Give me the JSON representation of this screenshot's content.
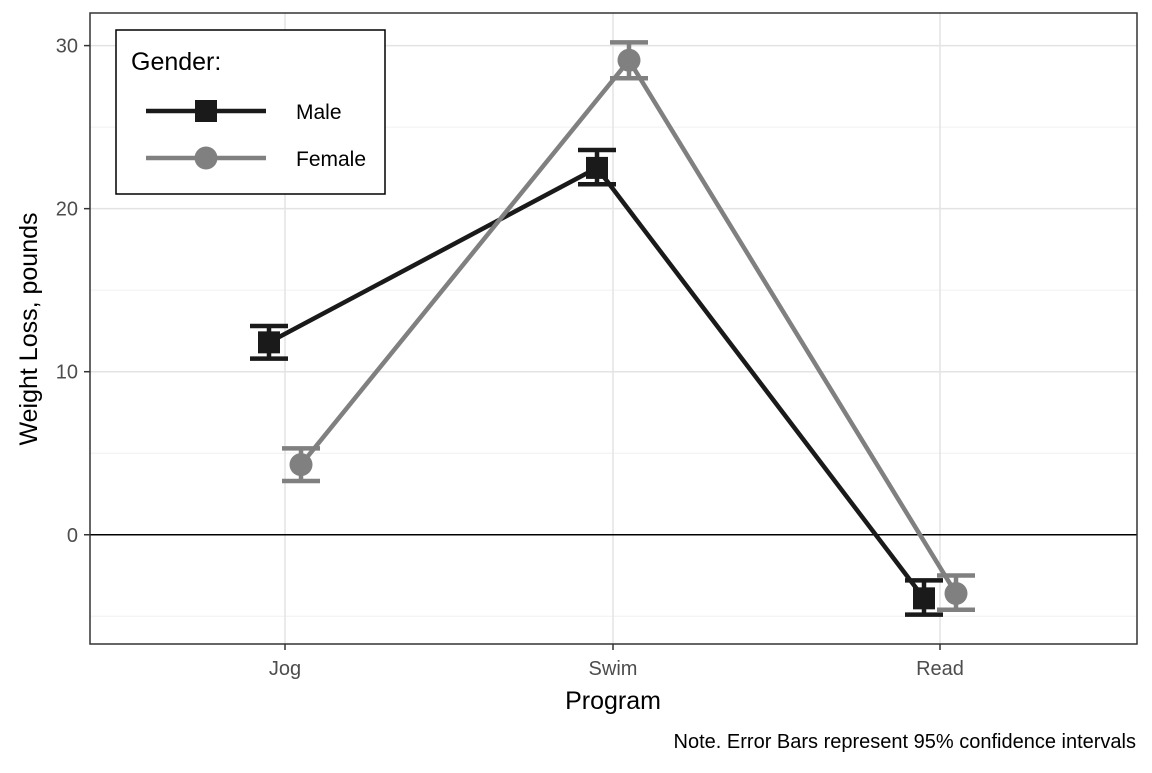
{
  "chart_data": {
    "type": "line",
    "xlabel": "Program",
    "ylabel": "Weight Loss, pounds",
    "categories": [
      "Jog",
      "Swim",
      "Read"
    ],
    "ylim": [
      -6.7,
      32
    ],
    "yticks": [
      0,
      10,
      20,
      30
    ],
    "reference_line": 0,
    "grid": true,
    "legend": {
      "title": "Gender:",
      "position": "top-left"
    },
    "series": [
      {
        "name": "Male",
        "color": "#1a1a1a",
        "marker": "square",
        "dodge": -1,
        "values": [
          11.8,
          22.5,
          -3.9
        ],
        "ci_low": [
          10.8,
          21.5,
          -4.9
        ],
        "ci_high": [
          12.8,
          23.6,
          -2.8
        ]
      },
      {
        "name": "Female",
        "color": "#808080",
        "marker": "circle",
        "dodge": 1,
        "values": [
          4.3,
          29.1,
          -3.6
        ],
        "ci_low": [
          3.3,
          28.0,
          -4.6
        ],
        "ci_high": [
          5.3,
          30.2,
          -2.5
        ]
      }
    ],
    "caption": "Note. Error Bars represent 95% confidence intervals"
  }
}
